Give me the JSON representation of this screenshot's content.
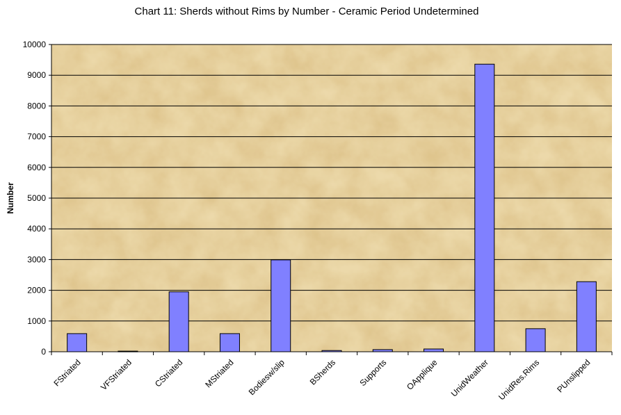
{
  "chart_data": {
    "type": "bar",
    "title": "Chart 11: Sherds without Rims by Number - Ceramic Period Undetermined",
    "ylabel": "Number",
    "xlabel": "",
    "ylim": [
      0,
      10000
    ],
    "y_ticks": [
      0,
      1000,
      2000,
      3000,
      4000,
      5000,
      6000,
      7000,
      8000,
      9000,
      10000
    ],
    "grid": true,
    "legend": "none",
    "categories": [
      "FStriated",
      "VFStriated",
      "CStriated",
      "MStriated",
      "Bodiesw/slip",
      "BSherds",
      "Supports",
      "OApplique",
      "UnidWeather",
      "UnidRes.Rims",
      "PUnslipped"
    ],
    "values": [
      590,
      20,
      1950,
      590,
      2990,
      40,
      70,
      90,
      9360,
      750,
      2280
    ],
    "colors": {
      "bar_fill": "#8080ff",
      "bar_stroke": "#000000",
      "plot_background": "#ecd9aa",
      "gridline": "#000000"
    }
  }
}
